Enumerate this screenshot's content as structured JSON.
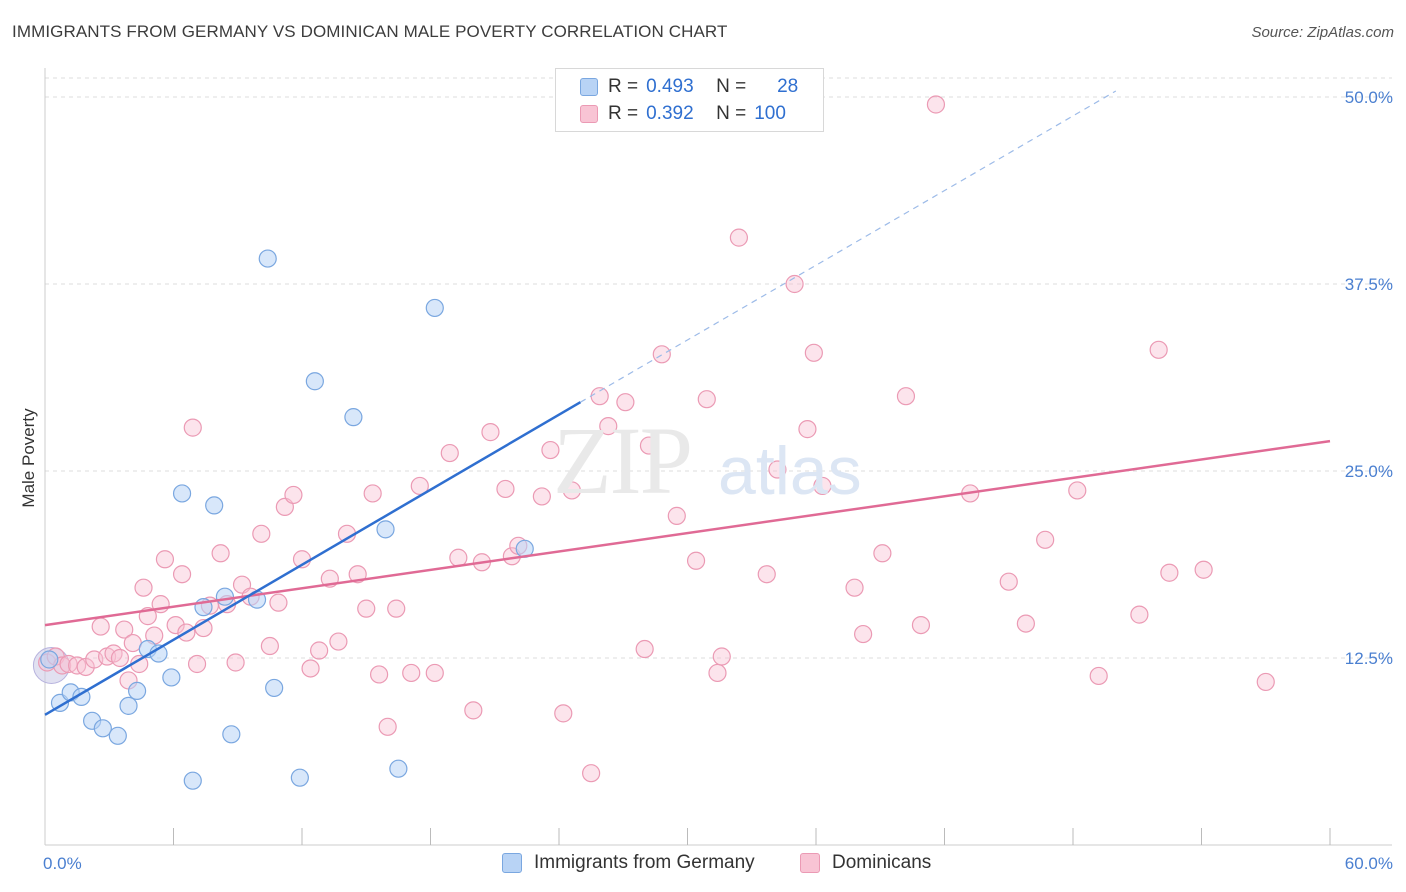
{
  "title": "IMMIGRANTS FROM GERMANY VS DOMINICAN MALE POVERTY CORRELATION CHART",
  "source": "Source: ZipAtlas.com",
  "watermark": {
    "zip": "ZIP",
    "atlas": "atlas"
  },
  "legend": {
    "rows": [
      {
        "r_label": "R =",
        "r_value": "0.493",
        "n_label": "N =",
        "n_value": "28"
      },
      {
        "r_label": "R =",
        "r_value": "0.392",
        "n_label": "N =",
        "n_value": "100"
      }
    ]
  },
  "bottom_legend": [
    "Immigrants from Germany",
    "Dominicans"
  ],
  "colors": {
    "germany_fill": "#b8d3f5",
    "germany_stroke": "#7aa7e0",
    "germany_line": "#2f6fd0",
    "dominican_fill": "#f8c4d4",
    "dominican_stroke": "#eb9ab4",
    "dominican_line": "#e06a95",
    "grid": "#dddddd",
    "tick_text": "#4a7fd0"
  },
  "chart_data": {
    "type": "scatter",
    "title": "IMMIGRANTS FROM GERMANY VS DOMINICAN MALE POVERTY CORRELATION CHART",
    "xlabel": "",
    "ylabel": "Male Poverty",
    "xlim": [
      0,
      60
    ],
    "ylim": [
      0,
      50
    ],
    "x_tick_labels": [
      "0.0%",
      "60.0%"
    ],
    "y_ticks": [
      12.5,
      25,
      37.5,
      50
    ],
    "y_tick_labels": [
      "12.5%",
      "25.0%",
      "37.5%",
      "50.0%"
    ],
    "grid": true,
    "legend_position": "top-center",
    "series": [
      {
        "name": "Immigrants from Germany",
        "r": 0.493,
        "n": 28,
        "trend": {
          "x0": 0,
          "y0": 8.7,
          "x1": 25,
          "y1": 29.6,
          "dashed_to_x": 50,
          "dashed_to_y": 50.4
        },
        "points": [
          [
            0.2,
            12.4
          ],
          [
            0.7,
            9.5
          ],
          [
            1.2,
            10.2
          ],
          [
            1.7,
            9.9
          ],
          [
            2.2,
            8.3
          ],
          [
            2.7,
            7.8
          ],
          [
            3.4,
            7.3
          ],
          [
            3.9,
            9.3
          ],
          [
            4.3,
            10.3
          ],
          [
            4.8,
            13.1
          ],
          [
            5.3,
            12.8
          ],
          [
            5.9,
            11.2
          ],
          [
            6.4,
            23.5
          ],
          [
            6.9,
            4.3
          ],
          [
            7.4,
            15.9
          ],
          [
            7.9,
            22.7
          ],
          [
            8.4,
            16.6
          ],
          [
            8.7,
            7.4
          ],
          [
            9.9,
            16.4
          ],
          [
            10.4,
            39.2
          ],
          [
            10.7,
            10.5
          ],
          [
            11.9,
            4.5
          ],
          [
            12.6,
            31.0
          ],
          [
            14.4,
            28.6
          ],
          [
            15.9,
            21.1
          ],
          [
            16.5,
            5.1
          ],
          [
            18.2,
            35.9
          ],
          [
            22.4,
            19.8
          ]
        ]
      },
      {
        "name": "Dominicans",
        "r": 0.392,
        "n": 100,
        "trend": {
          "x0": 0,
          "y0": 14.7,
          "x1": 60,
          "y1": 27.0
        },
        "points": [
          [
            0.1,
            12.2
          ],
          [
            0.5,
            12.6
          ],
          [
            0.8,
            12.0
          ],
          [
            1.1,
            12.1
          ],
          [
            1.5,
            12.0
          ],
          [
            1.9,
            11.9
          ],
          [
            2.3,
            12.4
          ],
          [
            2.6,
            14.6
          ],
          [
            2.9,
            12.6
          ],
          [
            3.2,
            12.8
          ],
          [
            3.5,
            12.5
          ],
          [
            3.7,
            14.4
          ],
          [
            3.9,
            11.0
          ],
          [
            4.1,
            13.5
          ],
          [
            4.4,
            12.1
          ],
          [
            4.6,
            17.2
          ],
          [
            4.8,
            15.3
          ],
          [
            5.1,
            14.0
          ],
          [
            5.4,
            16.1
          ],
          [
            5.6,
            19.1
          ],
          [
            6.1,
            14.7
          ],
          [
            6.4,
            18.1
          ],
          [
            6.6,
            14.2
          ],
          [
            6.9,
            27.9
          ],
          [
            7.1,
            12.1
          ],
          [
            7.4,
            14.5
          ],
          [
            7.7,
            16.0
          ],
          [
            8.2,
            19.5
          ],
          [
            8.5,
            16.1
          ],
          [
            8.9,
            12.2
          ],
          [
            9.2,
            17.4
          ],
          [
            9.6,
            16.6
          ],
          [
            10.1,
            20.8
          ],
          [
            10.5,
            13.3
          ],
          [
            10.9,
            16.2
          ],
          [
            11.2,
            22.6
          ],
          [
            11.6,
            23.4
          ],
          [
            12.0,
            19.1
          ],
          [
            12.4,
            11.8
          ],
          [
            12.8,
            13.0
          ],
          [
            13.3,
            17.8
          ],
          [
            13.7,
            13.6
          ],
          [
            14.1,
            20.8
          ],
          [
            14.6,
            18.1
          ],
          [
            15.0,
            15.8
          ],
          [
            15.3,
            23.5
          ],
          [
            15.6,
            11.4
          ],
          [
            16.0,
            7.9
          ],
          [
            16.4,
            15.8
          ],
          [
            17.1,
            11.5
          ],
          [
            17.5,
            24.0
          ],
          [
            18.2,
            11.5
          ],
          [
            18.9,
            26.2
          ],
          [
            19.3,
            19.2
          ],
          [
            20.0,
            9.0
          ],
          [
            20.4,
            18.9
          ],
          [
            20.8,
            27.6
          ],
          [
            21.5,
            23.8
          ],
          [
            21.8,
            19.3
          ],
          [
            22.1,
            20.0
          ],
          [
            23.2,
            23.3
          ],
          [
            23.6,
            26.4
          ],
          [
            24.2,
            8.8
          ],
          [
            24.6,
            23.7
          ],
          [
            25.5,
            4.8
          ],
          [
            25.9,
            30.0
          ],
          [
            26.3,
            28.0
          ],
          [
            27.1,
            29.6
          ],
          [
            28.0,
            13.1
          ],
          [
            28.2,
            26.7
          ],
          [
            28.8,
            32.8
          ],
          [
            29.5,
            22.0
          ],
          [
            30.4,
            19.0
          ],
          [
            30.9,
            29.8
          ],
          [
            31.4,
            11.5
          ],
          [
            31.6,
            12.6
          ],
          [
            32.4,
            40.6
          ],
          [
            33.7,
            18.1
          ],
          [
            34.2,
            25.1
          ],
          [
            35.0,
            37.5
          ],
          [
            35.6,
            27.8
          ],
          [
            35.9,
            32.9
          ],
          [
            36.3,
            24.0
          ],
          [
            37.8,
            17.2
          ],
          [
            38.2,
            14.1
          ],
          [
            39.1,
            19.5
          ],
          [
            40.2,
            30.0
          ],
          [
            40.9,
            14.7
          ],
          [
            41.6,
            49.5
          ],
          [
            43.2,
            23.5
          ],
          [
            45.0,
            17.6
          ],
          [
            45.8,
            14.8
          ],
          [
            46.7,
            20.4
          ],
          [
            48.2,
            23.7
          ],
          [
            49.2,
            11.3
          ],
          [
            51.1,
            15.4
          ],
          [
            52.0,
            33.1
          ],
          [
            52.5,
            18.2
          ],
          [
            54.1,
            18.4
          ],
          [
            57.0,
            10.9
          ]
        ]
      }
    ]
  }
}
